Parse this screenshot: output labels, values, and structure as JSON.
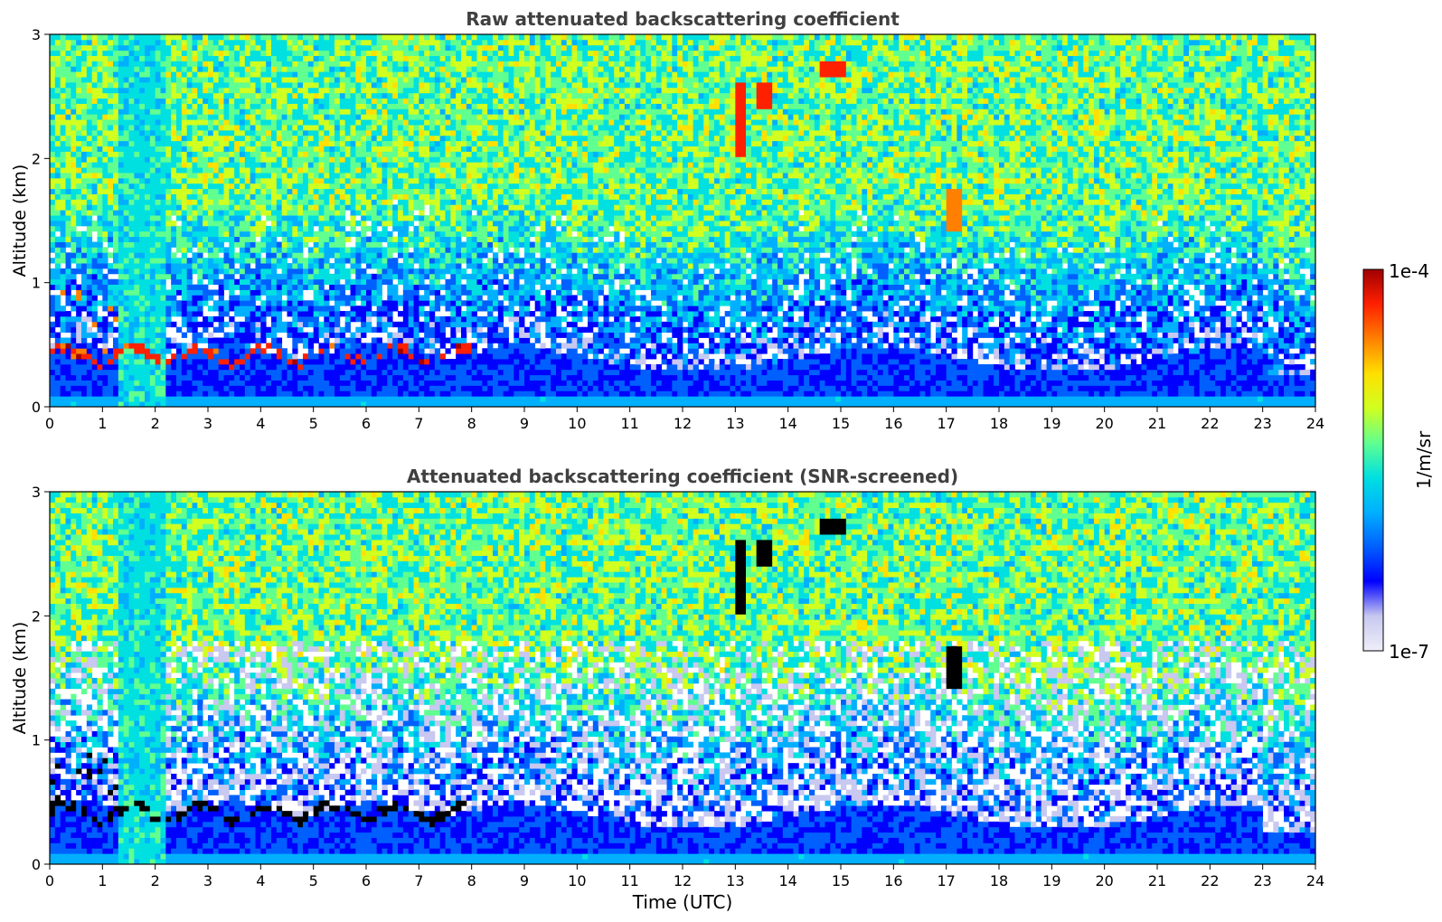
{
  "chart_data": [
    {
      "type": "heatmap",
      "title": "Raw attenuated backscattering coefficient",
      "xlabel": "",
      "ylabel": "Altitude (km)",
      "xlim": [
        0,
        24
      ],
      "ylim": [
        0,
        3
      ],
      "x_ticks": [
        "0",
        "1",
        "2",
        "3",
        "4",
        "5",
        "6",
        "7",
        "8",
        "9",
        "10",
        "11",
        "12",
        "13",
        "14",
        "15",
        "16",
        "17",
        "18",
        "19",
        "20",
        "21",
        "22",
        "23",
        "24"
      ],
      "y_ticks": [
        "0",
        "1",
        "2",
        "3"
      ],
      "screened": false
    },
    {
      "type": "heatmap",
      "title": "Attenuated backscattering coefficient (SNR-screened)",
      "xlabel": "Time (UTC)",
      "ylabel": "Altitude (km)",
      "xlim": [
        0,
        24
      ],
      "ylim": [
        0,
        3
      ],
      "x_ticks": [
        "0",
        "1",
        "2",
        "3",
        "4",
        "5",
        "6",
        "7",
        "8",
        "9",
        "10",
        "11",
        "12",
        "13",
        "14",
        "15",
        "16",
        "17",
        "18",
        "19",
        "20",
        "21",
        "22",
        "23",
        "24"
      ],
      "y_ticks": [
        "0",
        "1",
        "2",
        "3"
      ],
      "screened": true
    }
  ],
  "colorbar": {
    "label": "1/m/sr",
    "max_label": "1e-4",
    "min_label": "1e-7",
    "scale": "log",
    "range": [
      1e-07,
      0.0001
    ],
    "colormap": "jet",
    "colors": [
      "#eeeef9",
      "#c8c8f0",
      "#0000ff",
      "#0060ff",
      "#00b0ff",
      "#00e0e0",
      "#60ff90",
      "#d0ff20",
      "#ffe000",
      "#ff8000",
      "#ff2000",
      "#a00000"
    ]
  }
}
